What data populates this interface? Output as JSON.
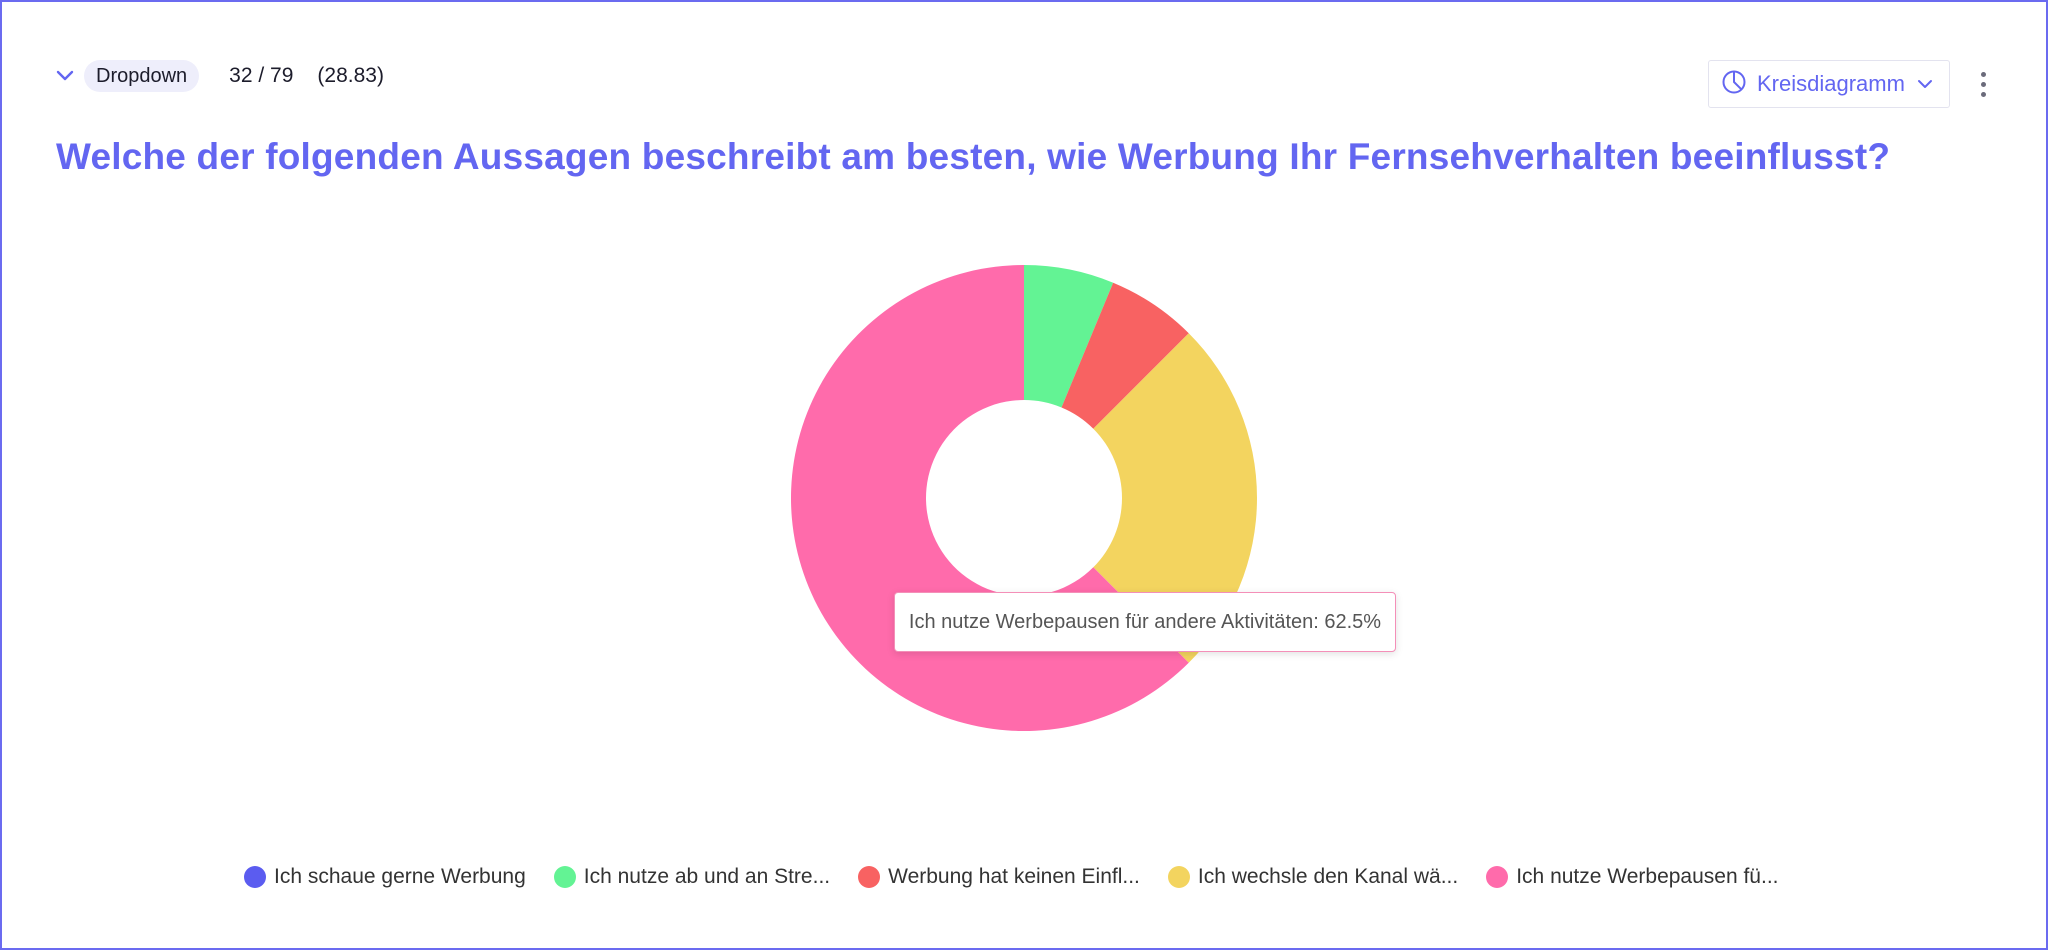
{
  "header": {
    "question_type": "Dropdown",
    "response_count": "32 / 79",
    "average": "(28.83)",
    "chart_type_label": "Kreisdiagramm"
  },
  "question": {
    "title": "Welche der folgenden Aussagen beschreibt am besten, wie Werbung Ihr Fernsehverhalten beeinflusst?"
  },
  "tooltip": {
    "text": "Ich nutze Werbepausen für andere Aktivitäten: 62.5%"
  },
  "legend": [
    {
      "label": "Ich schaue gerne Werbung",
      "color": "#5b5cf0"
    },
    {
      "label": "Ich nutze ab und an Stre...",
      "color": "#63f394"
    },
    {
      "label": "Werbung hat keinen Einfl...",
      "color": "#f86262"
    },
    {
      "label": "Ich wechsle den Kanal wä...",
      "color": "#f3d45f"
    },
    {
      "label": "Ich nutze Werbepausen fü...",
      "color": "#ff6bab"
    }
  ],
  "colors": {
    "accent": "#6366f1"
  },
  "chart_data": {
    "type": "pie",
    "donut": true,
    "title": "Welche der folgenden Aussagen beschreibt am besten, wie Werbung Ihr Fernsehverhalten beeinflusst?",
    "categories": [
      "Ich schaue gerne Werbung",
      "Ich nutze ab und an Stre...",
      "Werbung hat keinen Einfl...",
      "Ich wechsle den Kanal wä...",
      "Ich nutze Werbepausen fü..."
    ],
    "values": [
      0,
      6.25,
      6.25,
      25,
      62.5
    ],
    "colors": [
      "#5b5cf0",
      "#63f394",
      "#f86262",
      "#f3d45f",
      "#ff6bab"
    ],
    "unit": "%",
    "legend_position": "bottom"
  }
}
